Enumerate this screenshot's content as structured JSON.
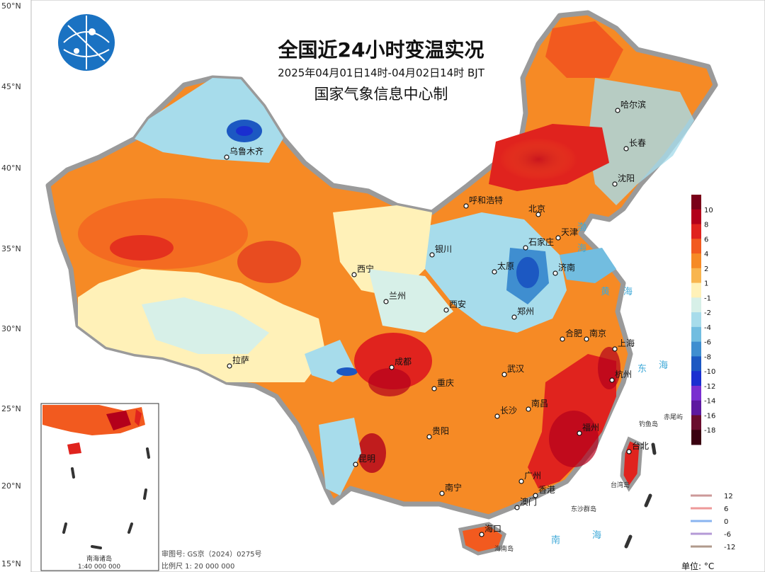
{
  "title": "全国近24小时变温实况",
  "subtitle": "2025年04月01日14时-04月02日14时 BJT",
  "org": "国家气象信息中心制",
  "latitudes": [
    "50°N",
    "45°N",
    "40°N",
    "35°N",
    "30°N",
    "25°N",
    "20°N",
    "15°N"
  ],
  "cities": [
    {
      "name": "乌鲁木齐"
    },
    {
      "name": "呼和浩特"
    },
    {
      "name": "北京"
    },
    {
      "name": "天津"
    },
    {
      "name": "哈尔滨"
    },
    {
      "name": "长春"
    },
    {
      "name": "沈阳"
    },
    {
      "name": "石家庄"
    },
    {
      "name": "太原"
    },
    {
      "name": "济南"
    },
    {
      "name": "银川"
    },
    {
      "name": "西宁"
    },
    {
      "name": "兰州"
    },
    {
      "name": "西安"
    },
    {
      "name": "郑州"
    },
    {
      "name": "合肥"
    },
    {
      "name": "南京"
    },
    {
      "name": "上海"
    },
    {
      "name": "杭州"
    },
    {
      "name": "武汉"
    },
    {
      "name": "成都"
    },
    {
      "name": "重庆"
    },
    {
      "name": "拉萨"
    },
    {
      "name": "长沙"
    },
    {
      "name": "南昌"
    },
    {
      "name": "福州"
    },
    {
      "name": "贵阳"
    },
    {
      "name": "昆明"
    },
    {
      "name": "南宁"
    },
    {
      "name": "广州"
    },
    {
      "name": "香港"
    },
    {
      "name": "澳门"
    },
    {
      "name": "海口"
    },
    {
      "name": "台北"
    }
  ],
  "seas": {
    "bohai": "渤",
    "bohai2": "海",
    "huanghai1": "黄",
    "huanghai2": "海",
    "donghai1": "东",
    "donghai2": "海",
    "nanhai1": "南",
    "nanhai2": "海"
  },
  "islands": {
    "taiwan": "台湾岛",
    "hainan": "海南岛",
    "dongsha": "东沙群岛",
    "diaoyu": "钓鱼岛",
    "chiwei": "赤尾屿"
  },
  "inset": {
    "label": "南海诸岛",
    "scale": "1:40 000 000"
  },
  "footer": {
    "review": "审图号: GS京（2024）0275号",
    "scale": "比例尺 1: 20 000 000"
  },
  "unit": "单位: °C",
  "legend": {
    "labels": [
      "10",
      "8",
      "6",
      "4",
      "2",
      "1",
      "-1",
      "-2",
      "-4",
      "-6",
      "-8",
      "-10",
      "-12",
      "-14",
      "-16",
      "-18"
    ],
    "colors": [
      "#7a0019",
      "#b3001b",
      "#e0231e",
      "#f25a1f",
      "#f68a25",
      "#f8b54f",
      "#fff1b8",
      "#d7f0e8",
      "#a7dceb",
      "#72bde0",
      "#3f8ed0",
      "#1c58c2",
      "#1a2fd0",
      "#7a2fd0",
      "#5d1aa0",
      "#6a0d2e",
      "#3a0010"
    ]
  },
  "contour_legend": [
    {
      "value": "12",
      "color": "#c99"
    },
    {
      "value": "6",
      "color": "#e99"
    },
    {
      "value": "0",
      "color": "#8ab4f0"
    },
    {
      "value": "-6",
      "color": "#b49ad6"
    },
    {
      "value": "-12",
      "color": "#b09a8c"
    }
  ]
}
